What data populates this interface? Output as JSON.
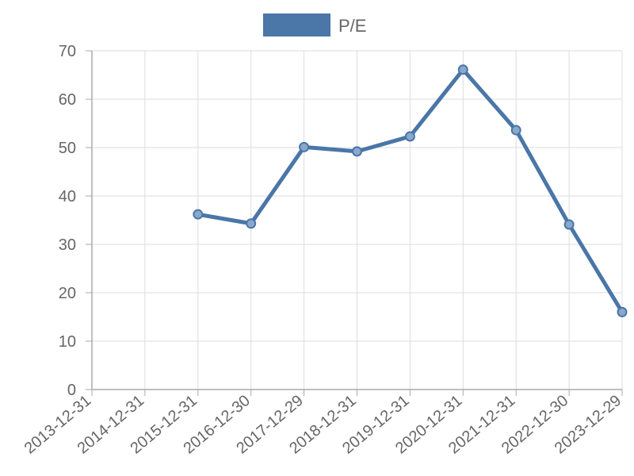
{
  "chart_data": {
    "type": "line",
    "title": "",
    "xlabel": "",
    "ylabel": "",
    "categories": [
      "2013-12-31",
      "2014-12-31",
      "2015-12-31",
      "2016-12-30",
      "2017-12-29",
      "2018-12-31",
      "2019-12-31",
      "2020-12-31",
      "2021-12-31",
      "2022-12-30",
      "2023-12-29"
    ],
    "series": [
      {
        "name": "P/E",
        "color": "#4a76a8",
        "values": [
          null,
          null,
          36.2,
          34.3,
          50.1,
          49.2,
          52.3,
          66.1,
          53.6,
          34.1,
          16.0
        ]
      }
    ],
    "ylim": [
      0,
      70
    ],
    "yticks": [
      0,
      10,
      20,
      30,
      40,
      50,
      60,
      70
    ],
    "grid": true,
    "legend_position": "top"
  }
}
